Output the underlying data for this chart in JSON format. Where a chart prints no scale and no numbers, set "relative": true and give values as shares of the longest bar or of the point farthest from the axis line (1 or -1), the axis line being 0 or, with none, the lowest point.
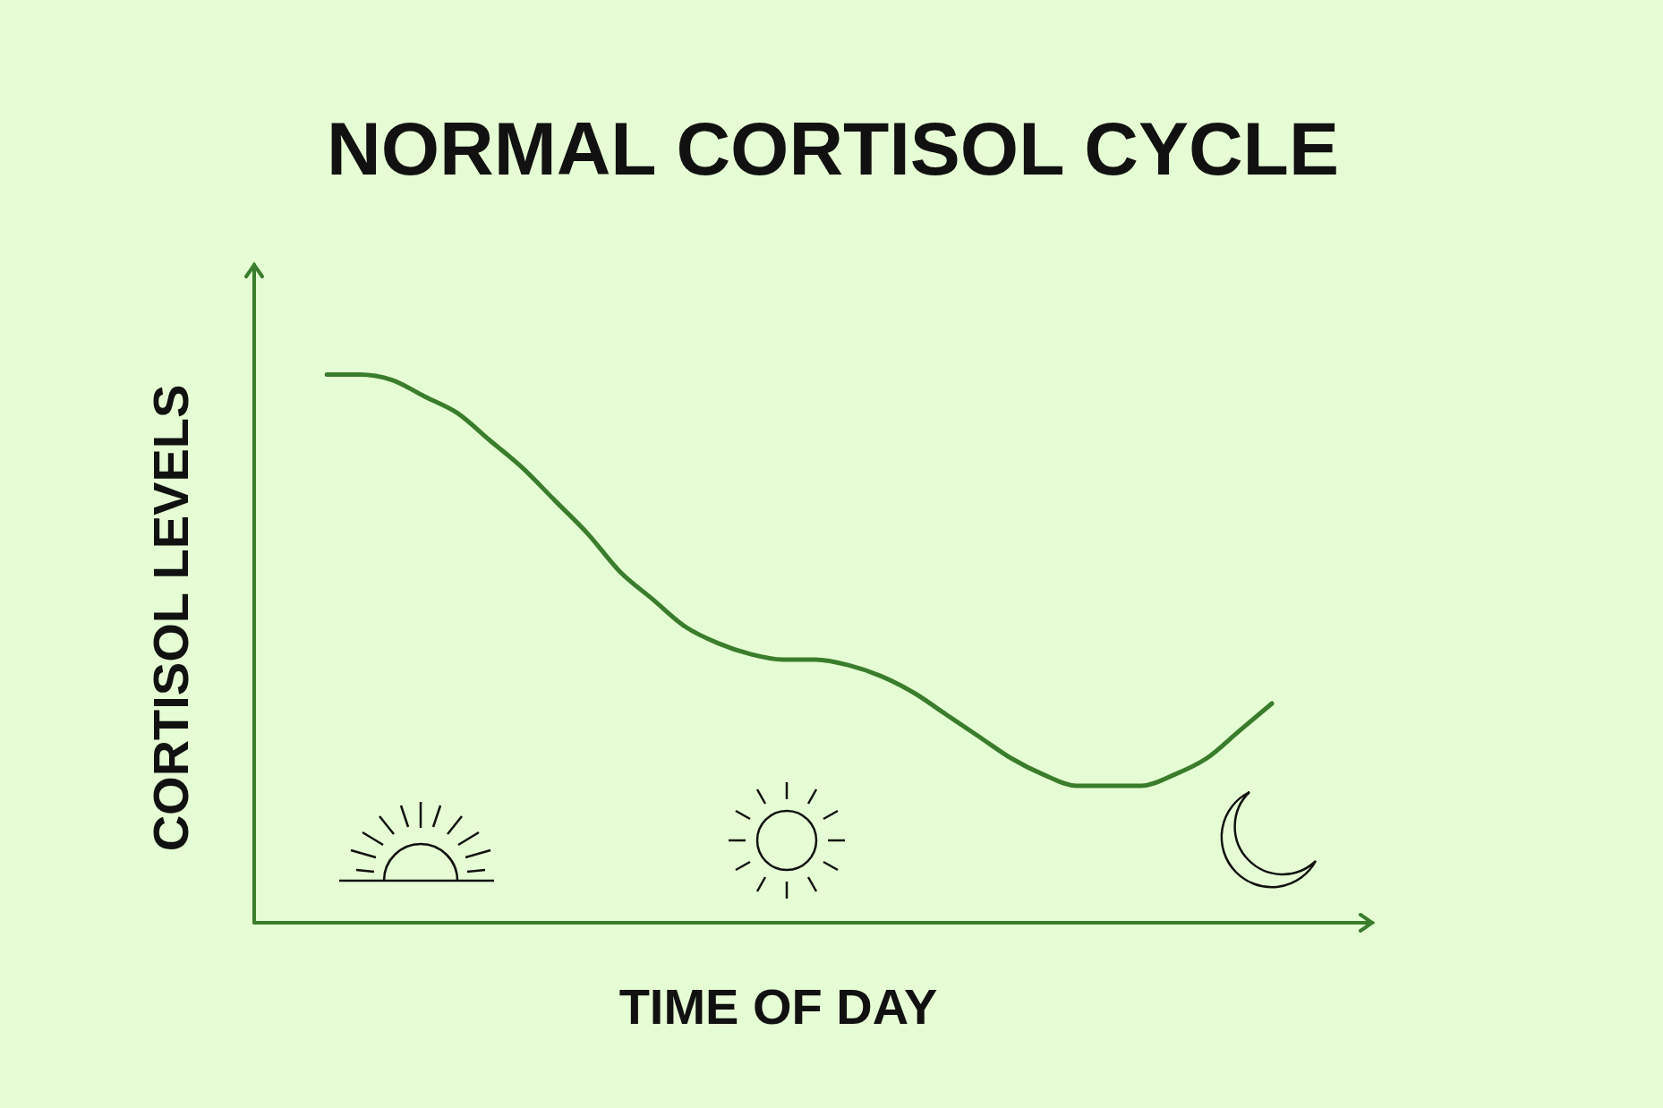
{
  "chart_data": {
    "type": "line",
    "title": "NORMAL CORTISOL CYCLE",
    "xlabel": "TIME OF DAY",
    "ylabel": "CORTISOL LEVELS",
    "relative": true,
    "categories": [
      null,
      null,
      null,
      null,
      null,
      null,
      null,
      null,
      null,
      null,
      null,
      null,
      null,
      null,
      null,
      null,
      null,
      null,
      null,
      null,
      null,
      null,
      null,
      null,
      null,
      null,
      null,
      null,
      null,
      null
    ],
    "series": [
      {
        "color": "#3a7d2c",
        "values": [
          1.0,
          1.0,
          0.99,
          0.96,
          0.93,
          0.88,
          0.83,
          0.77,
          0.71,
          0.64,
          0.59,
          0.54,
          0.51,
          0.49,
          0.48,
          0.48,
          0.47,
          0.45,
          0.42,
          0.38,
          0.34,
          0.3,
          0.27,
          0.25,
          0.25,
          0.25,
          0.27,
          0.3,
          0.35,
          0.4
        ]
      }
    ],
    "grid": false,
    "legend": false
  }
}
